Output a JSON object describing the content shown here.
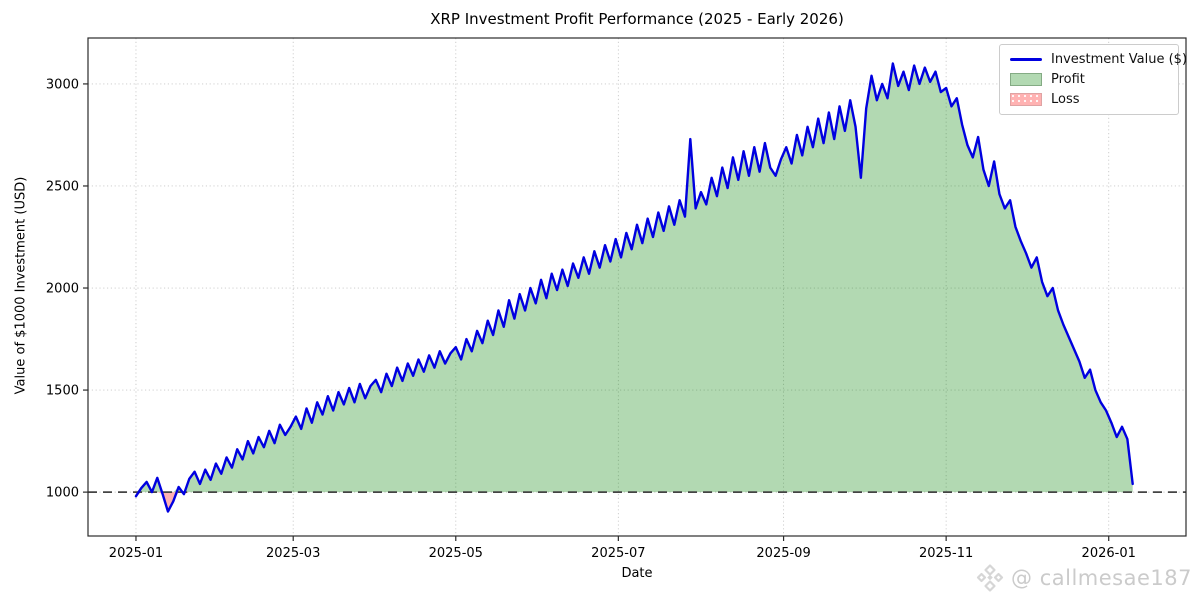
{
  "chart_data": {
    "type": "line",
    "title": "XRP Investment Profit Performance (2025 - Early 2026)",
    "xlabel": "Date",
    "ylabel": "Value of $1000 Investment (USD)",
    "x_unit": "days since 2025-01-01",
    "xlim_days": [
      -18,
      394
    ],
    "ylim": [
      785,
      3225
    ],
    "grid": "dotted, at labeled ticks only",
    "x_ticks": [
      {
        "day": 0,
        "label": "2025-01"
      },
      {
        "day": 59,
        "label": "2025-03"
      },
      {
        "day": 120,
        "label": "2025-05"
      },
      {
        "day": 181,
        "label": "2025-07"
      },
      {
        "day": 243,
        "label": "2025-09"
      },
      {
        "day": 304,
        "label": "2025-11"
      },
      {
        "day": 365,
        "label": "2026-01"
      }
    ],
    "y_ticks": [
      1000,
      1500,
      2000,
      2500,
      3000
    ],
    "break_even": {
      "value": 1000,
      "style": "dashed",
      "color": "#444444"
    },
    "colors": {
      "line": "#0000e0",
      "profit_fill": "rgba(0,128,0,0.30)",
      "loss_fill": "rgba(255,0,0,0.30)",
      "grid": "#c9c9c9",
      "axes_box": "#2b2b2b"
    },
    "legend": [
      {
        "label": "Investment Value ($)",
        "type": "line",
        "color": "#0000e0"
      },
      {
        "label": "Profit",
        "type": "patch",
        "color": "rgba(0,128,0,0.30)"
      },
      {
        "label": "Loss",
        "type": "patch",
        "color": "rgba(255,0,0,0.30)"
      }
    ],
    "legend_position": "upper right",
    "series": [
      {
        "name": "Investment Value ($)",
        "days": [
          0,
          2,
          4,
          6,
          8,
          10,
          12,
          14,
          16,
          18,
          20,
          22,
          24,
          26,
          28,
          30,
          32,
          34,
          36,
          38,
          40,
          42,
          44,
          46,
          48,
          50,
          52,
          54,
          56,
          58,
          60,
          62,
          64,
          66,
          68,
          70,
          72,
          74,
          76,
          78,
          80,
          82,
          84,
          86,
          88,
          90,
          92,
          94,
          96,
          98,
          100,
          102,
          104,
          106,
          108,
          110,
          112,
          114,
          116,
          118,
          120,
          122,
          124,
          126,
          128,
          130,
          132,
          134,
          136,
          138,
          140,
          142,
          144,
          146,
          148,
          150,
          152,
          154,
          156,
          158,
          160,
          162,
          164,
          166,
          168,
          170,
          172,
          174,
          176,
          178,
          180,
          182,
          184,
          186,
          188,
          190,
          192,
          194,
          196,
          198,
          200,
          202,
          204,
          206,
          208,
          210,
          212,
          214,
          216,
          218,
          220,
          222,
          224,
          226,
          228,
          230,
          232,
          234,
          236,
          238,
          240,
          242,
          244,
          246,
          248,
          250,
          252,
          254,
          256,
          258,
          260,
          262,
          264,
          266,
          268,
          270,
          272,
          274,
          276,
          278,
          280,
          282,
          284,
          286,
          288,
          290,
          292,
          294,
          296,
          298,
          300,
          302,
          304,
          306,
          308,
          310,
          312,
          314,
          316,
          318,
          320,
          322,
          324,
          326,
          328,
          330,
          332,
          334,
          336,
          338,
          340,
          342,
          344,
          346,
          348,
          350,
          352,
          354,
          356,
          358,
          360,
          362,
          364,
          366,
          368,
          370,
          372,
          374
        ],
        "values": [
          980,
          1020,
          1050,
          1000,
          1070,
          990,
          905,
          955,
          1025,
          990,
          1065,
          1100,
          1040,
          1110,
          1060,
          1140,
          1090,
          1170,
          1120,
          1210,
          1160,
          1250,
          1190,
          1270,
          1220,
          1300,
          1240,
          1330,
          1280,
          1320,
          1370,
          1310,
          1410,
          1340,
          1440,
          1380,
          1470,
          1400,
          1490,
          1430,
          1510,
          1440,
          1530,
          1460,
          1520,
          1550,
          1490,
          1580,
          1520,
          1610,
          1545,
          1630,
          1570,
          1650,
          1590,
          1670,
          1610,
          1690,
          1630,
          1680,
          1710,
          1650,
          1750,
          1690,
          1790,
          1730,
          1840,
          1770,
          1890,
          1810,
          1940,
          1850,
          1970,
          1890,
          2000,
          1925,
          2040,
          1950,
          2070,
          1990,
          2090,
          2010,
          2120,
          2050,
          2150,
          2070,
          2180,
          2100,
          2210,
          2130,
          2240,
          2150,
          2270,
          2190,
          2310,
          2220,
          2340,
          2250,
          2370,
          2280,
          2400,
          2310,
          2430,
          2350,
          2730,
          2390,
          2470,
          2410,
          2540,
          2450,
          2590,
          2490,
          2640,
          2530,
          2670,
          2550,
          2690,
          2570,
          2710,
          2590,
          2550,
          2630,
          2690,
          2610,
          2750,
          2650,
          2790,
          2690,
          2830,
          2710,
          2860,
          2730,
          2890,
          2770,
          2920,
          2790,
          2540,
          2880,
          3040,
          2920,
          3000,
          2930,
          3100,
          2990,
          3060,
          2970,
          3090,
          3000,
          3080,
          3010,
          3060,
          2960,
          2980,
          2890,
          2930,
          2800,
          2700,
          2640,
          2740,
          2580,
          2500,
          2620,
          2460,
          2390,
          2430,
          2300,
          2230,
          2170,
          2100,
          2150,
          2030,
          1960,
          2000,
          1890,
          1820,
          1760,
          1700,
          1640,
          1560,
          1600,
          1500,
          1440,
          1400,
          1340,
          1270,
          1320,
          1260,
          1040
        ]
      }
    ]
  },
  "watermark": {
    "icon": "diamond-logo",
    "text": "@ callmesae187"
  }
}
